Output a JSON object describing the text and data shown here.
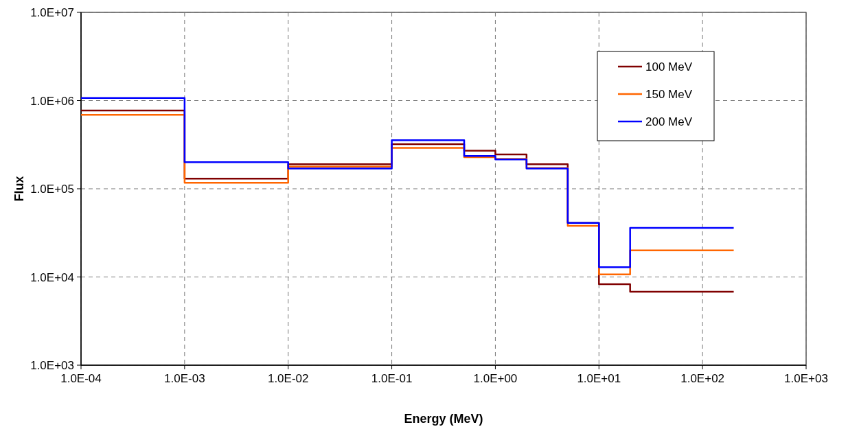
{
  "chart_data": {
    "type": "step",
    "xlabel": "Energy (MeV)",
    "ylabel": "Flux",
    "log": "xy",
    "grid": true,
    "legend": "top right",
    "x": [
      0.0001,
      0.001,
      0.01,
      0.1,
      0.5,
      1,
      2,
      5,
      10,
      20,
      200
    ],
    "xlim": [
      0.0001,
      1000
    ],
    "ylim": [
      1000,
      10000000
    ],
    "xticks": [
      {
        "value": 0.0001,
        "label": "1.0E-04"
      },
      {
        "value": 0.001,
        "label": "1.0E-03"
      },
      {
        "value": 0.01,
        "label": "1.0E-02"
      },
      {
        "value": 0.1,
        "label": "1.0E-01"
      },
      {
        "value": 1,
        "label": "1.0E+00"
      },
      {
        "value": 10,
        "label": "1.0E+01"
      },
      {
        "value": 100,
        "label": "1.0E+02"
      },
      {
        "value": 1000,
        "label": "1.0E+03"
      }
    ],
    "yticks": [
      {
        "value": 1000,
        "label": "1.0E+03"
      },
      {
        "value": 10000,
        "label": "1.0E+04"
      },
      {
        "value": 100000,
        "label": "1.0E+05"
      },
      {
        "value": 1000000,
        "label": "1.0E+06"
      },
      {
        "value": 10000000,
        "label": "1.0E+07"
      }
    ],
    "series": [
      {
        "name": "100 MeV",
        "color": "#800000",
        "values": [
          770000,
          130000,
          190000,
          320000,
          270000,
          245000,
          190000,
          41000,
          8300,
          6800,
          6800
        ]
      },
      {
        "name": "150 MeV",
        "color": "#ff6600",
        "values": [
          690000,
          117000,
          178000,
          290000,
          228000,
          218000,
          172000,
          38000,
          10700,
          20000,
          20000
        ]
      },
      {
        "name": "200 MeV",
        "color": "#0000ff",
        "values": [
          1070000,
          200000,
          170000,
          355000,
          235000,
          215000,
          170000,
          41000,
          12900,
          36000,
          36000
        ]
      }
    ]
  }
}
